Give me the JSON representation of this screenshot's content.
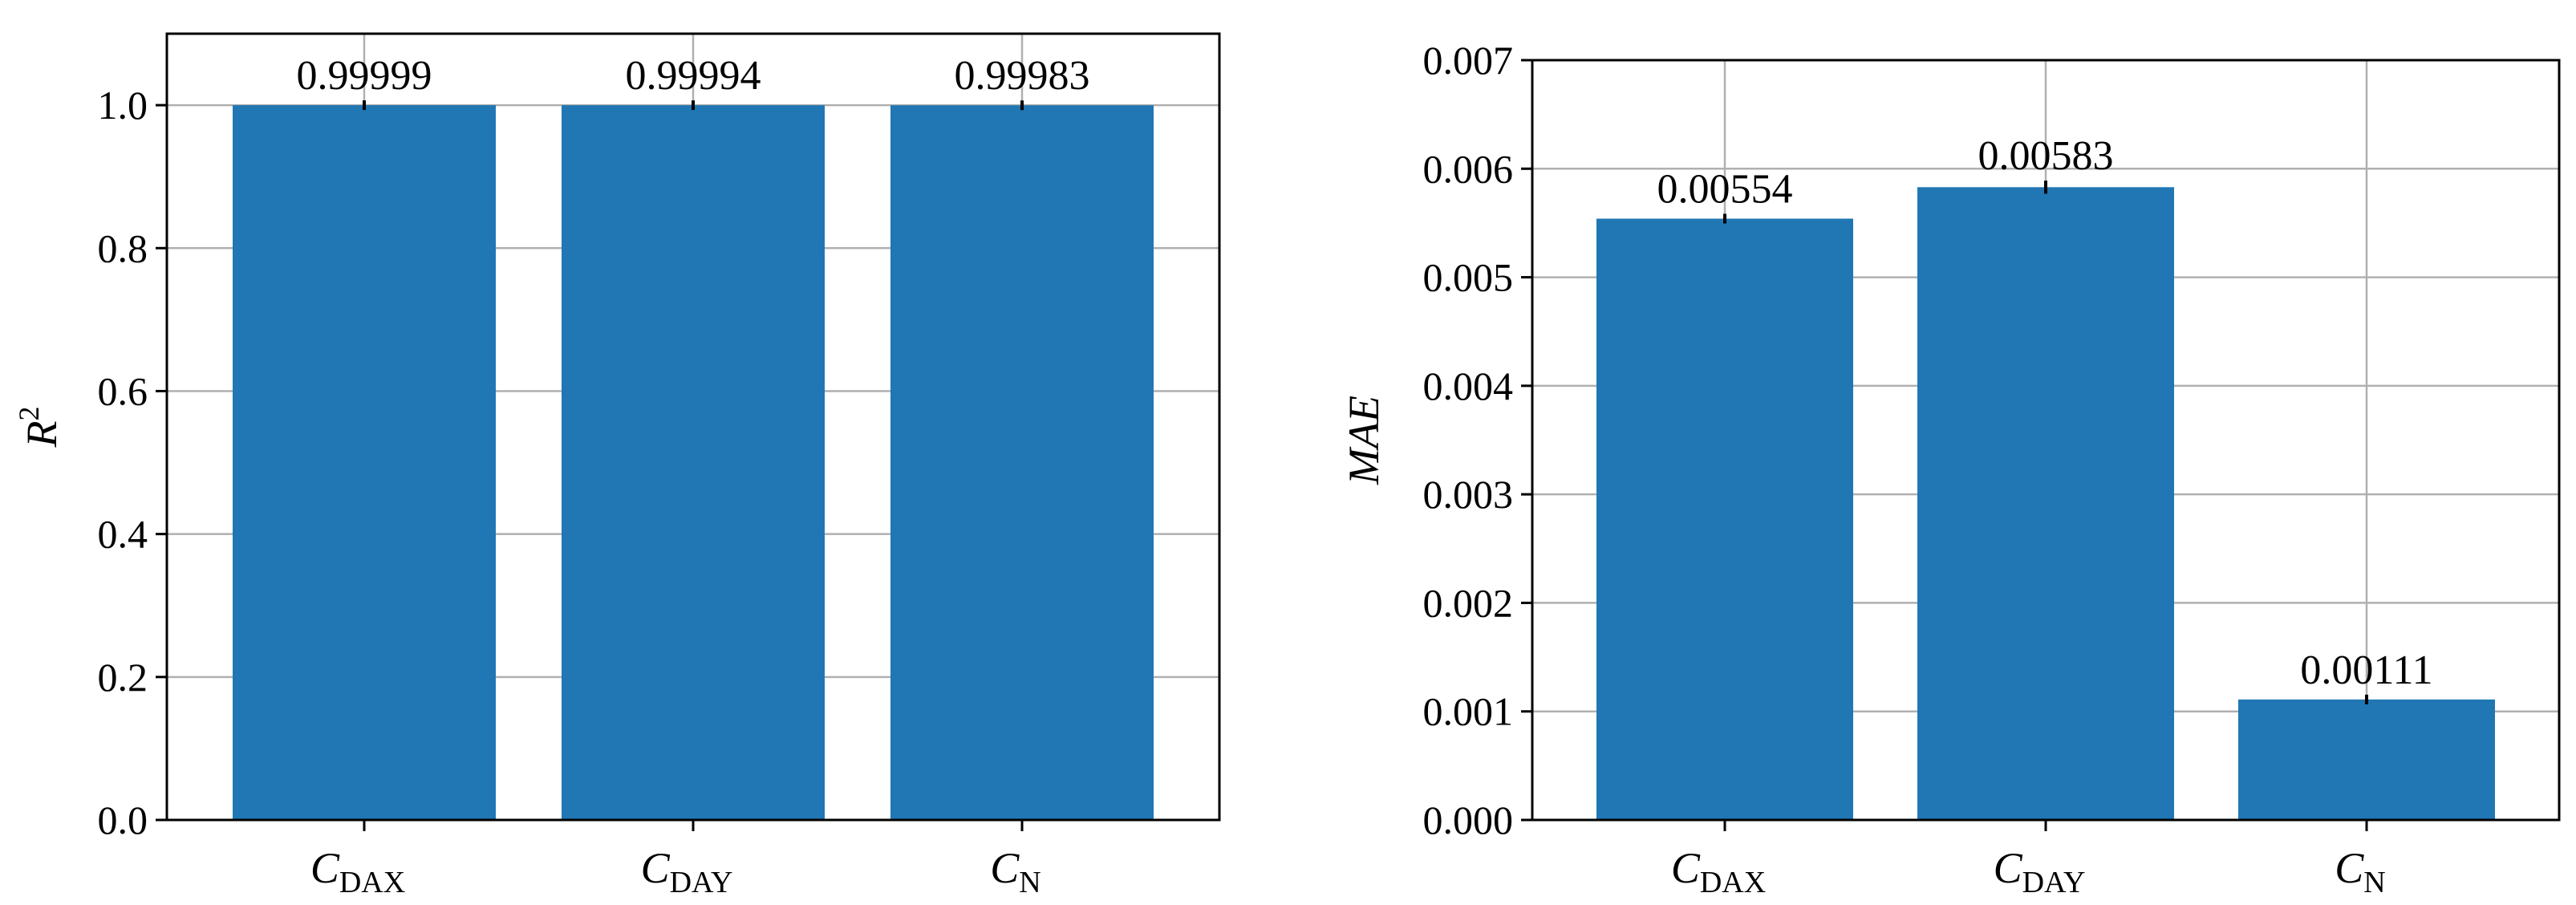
{
  "chart_data": [
    {
      "type": "bar",
      "ylabel": "R",
      "ylabel_sup": "2",
      "categories": [
        {
          "main": "C",
          "sub": "DAX"
        },
        {
          "main": "C",
          "sub": "DAY"
        },
        {
          "main": "C",
          "sub": "N"
        }
      ],
      "values": [
        0.99999,
        0.99994,
        0.99983
      ],
      "value_labels": [
        "0.99999",
        "0.99994",
        "0.99983"
      ],
      "errors": [
        4e-06,
        2e-05,
        3e-05
      ],
      "ylim": [
        0.0,
        1.1
      ],
      "yticks": [
        0.0,
        0.2,
        0.4,
        0.6,
        0.8,
        1.0
      ],
      "ytick_labels": [
        "0.0",
        "0.2",
        "0.4",
        "0.6",
        "0.8",
        "1.0"
      ],
      "grid": true,
      "bar_color": "#2077b4"
    },
    {
      "type": "bar",
      "ylabel": "MAE",
      "ylabel_sup": "",
      "categories": [
        {
          "main": "C",
          "sub": "DAX"
        },
        {
          "main": "C",
          "sub": "DAY"
        },
        {
          "main": "C",
          "sub": "N"
        }
      ],
      "values": [
        0.00554,
        0.00583,
        0.00111
      ],
      "value_labels": [
        "0.00554",
        "0.00583",
        "0.00111"
      ],
      "errors": [
        4e-05,
        6e-05,
        1e-05
      ],
      "ylim": [
        0.0,
        0.007
      ],
      "yticks": [
        0.0,
        0.001,
        0.002,
        0.003,
        0.004,
        0.005,
        0.006,
        0.007
      ],
      "ytick_labels": [
        "0.000",
        "0.001",
        "0.002",
        "0.003",
        "0.004",
        "0.005",
        "0.006",
        "0.007"
      ],
      "grid": true,
      "bar_color": "#2077b4"
    }
  ]
}
